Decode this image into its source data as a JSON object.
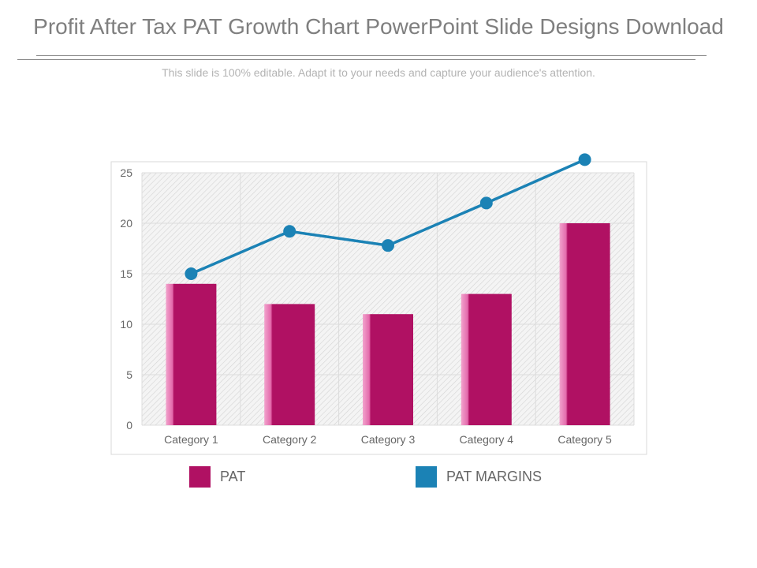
{
  "slide": {
    "title": "Profit After Tax PAT Growth Chart PowerPoint Slide Designs Download",
    "subtitle": "This slide is 100% editable. Adapt it to your needs and capture your audience's attention."
  },
  "colors": {
    "bar": "#b01163",
    "bar_highlight": "#e07ab5",
    "line": "#1b82b5",
    "grid": "#dcdcdc",
    "axis_text": "#666666"
  },
  "chart_data": {
    "type": "bar",
    "categories": [
      "Category 1",
      "Category 2",
      "Category 3",
      "Category 4",
      "Category 5"
    ],
    "series": [
      {
        "name": "PAT",
        "kind": "bar",
        "values": [
          14,
          12,
          11,
          13,
          20
        ]
      },
      {
        "name": "PAT MARGINS",
        "kind": "line",
        "values": [
          15,
          19.2,
          17.8,
          22,
          26.3
        ]
      }
    ],
    "yticks": [
      0,
      5,
      10,
      15,
      20,
      25
    ],
    "ylim": [
      0,
      25
    ],
    "grid": true,
    "legend_position": "bottom",
    "title": "",
    "xlabel": "",
    "ylabel": ""
  },
  "legend": {
    "items": [
      {
        "label": "PAT",
        "color": "#b01163"
      },
      {
        "label": "PAT MARGINS",
        "color": "#1b82b5"
      }
    ]
  }
}
